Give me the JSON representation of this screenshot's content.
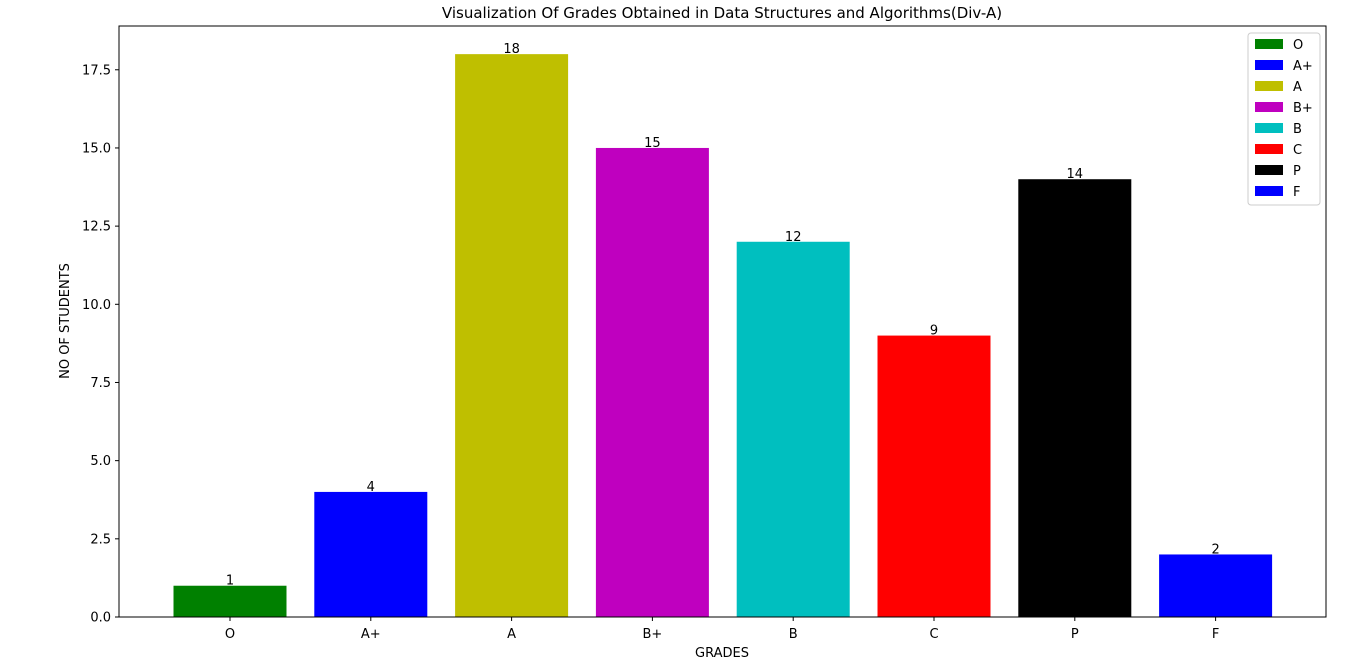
{
  "chart_data": {
    "type": "bar",
    "title": "Visualization Of Grades Obtained in Data Structures and Algorithms(Div-A)",
    "xlabel": "GRADES",
    "ylabel": "NO OF STUDENTS",
    "categories": [
      "O",
      "A+",
      "A",
      "B+",
      "B",
      "C",
      "P",
      "F"
    ],
    "values": [
      1,
      4,
      18,
      15,
      12,
      9,
      14,
      2
    ],
    "colors": [
      "#008000",
      "#0000ff",
      "#bfbf00",
      "#bf00bf",
      "#00bfbf",
      "#ff0000",
      "#000000",
      "#0000ff"
    ],
    "ylim": [
      0,
      18.9
    ],
    "yticks": [
      0,
      2.5,
      5,
      7.5,
      10,
      12.5,
      15,
      17.5
    ],
    "ytick_labels": [
      "0.0",
      "2.5",
      "5.0",
      "7.5",
      "10.0",
      "12.5",
      "15.0",
      "17.5"
    ],
    "data_labels": [
      "1",
      "4",
      "18",
      "15",
      "12",
      "9",
      "14",
      "2"
    ],
    "legend": {
      "placement": "top-right",
      "entries": [
        "O",
        "A+",
        "A",
        "B+",
        "B",
        "C",
        "P",
        "F"
      ]
    },
    "grid": false
  }
}
